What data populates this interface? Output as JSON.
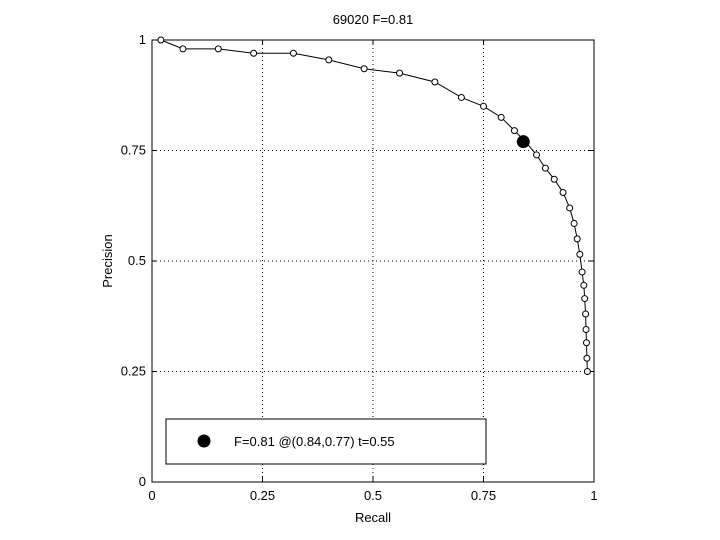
{
  "chart_data": {
    "type": "line",
    "title": "69020 F=0.81",
    "xlabel": "Recall",
    "ylabel": "Precision",
    "xlim": [
      0,
      1
    ],
    "ylim": [
      0,
      1
    ],
    "xticks": [
      0,
      0.25,
      0.5,
      0.75,
      1
    ],
    "yticks": [
      0,
      0.25,
      0.5,
      0.75,
      1
    ],
    "xtick_labels": [
      "0",
      "0.25",
      "0.5",
      "0.75",
      "1"
    ],
    "ytick_labels": [
      "0",
      "0.25",
      "0.5",
      "0.75",
      "1"
    ],
    "grid": true,
    "legend_position": "bottom-left",
    "series": [
      {
        "x": [
          0.02,
          0.07,
          0.15,
          0.23,
          0.32,
          0.4,
          0.48,
          0.56,
          0.64,
          0.7,
          0.75,
          0.79,
          0.82,
          0.845,
          0.87,
          0.89,
          0.91,
          0.93,
          0.945,
          0.955,
          0.962,
          0.968,
          0.973,
          0.977,
          0.979,
          0.981,
          0.982,
          0.983,
          0.984,
          0.985
        ],
        "y": [
          1.0,
          0.98,
          0.98,
          0.97,
          0.97,
          0.955,
          0.935,
          0.925,
          0.905,
          0.87,
          0.85,
          0.825,
          0.795,
          0.77,
          0.74,
          0.71,
          0.685,
          0.655,
          0.62,
          0.585,
          0.55,
          0.515,
          0.475,
          0.445,
          0.415,
          0.38,
          0.345,
          0.315,
          0.28,
          0.25
        ]
      }
    ],
    "best_point": {
      "x": 0.84,
      "y": 0.77
    },
    "legend_label": "F=0.81 @(0.84,0.77) t=0.55"
  }
}
